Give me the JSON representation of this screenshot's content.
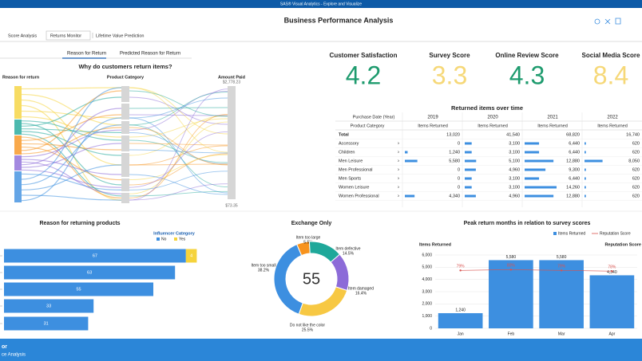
{
  "app_title": "SAS® Visual Analytics - Explore and Visualize",
  "report_title": "Business Performance Analysis",
  "tabs": [
    "Score Analysis",
    "Returns Monitor",
    "Lifetime Value Prediction"
  ],
  "subtabs": [
    "Reason for Return",
    "Predicted Reason for Return"
  ],
  "sankey": {
    "title": "Why do customers return items?",
    "axes": [
      "Reason for return",
      "Product Category",
      "Amount Paid"
    ],
    "max_label": "$2,778.23",
    "min_label": "$73.35"
  },
  "kpis": [
    {
      "label": "Customer Satisfaction",
      "value": 4.2,
      "color": "#1e9b6e"
    },
    {
      "label": "Survey Score",
      "value": 3.3,
      "color": "#f6d878"
    },
    {
      "label": "Online Review Score",
      "value": 4.3,
      "color": "#1e9b6e"
    },
    {
      "label": "Social Media Score",
      "value": 8.4,
      "color": "#f6d878"
    }
  ],
  "table": {
    "title": "Returned items over time",
    "column_dim": "Purchase Date (Year)",
    "row_dim": "Product Category",
    "years": [
      "2019",
      "2020",
      "2021",
      "2022"
    ],
    "measure": "Items Returned",
    "bar_color": "#3d8fe0",
    "rows": [
      {
        "label": "Total",
        "values": [
          13020,
          41540,
          68820,
          16740
        ],
        "value_labels": [
          "13,020",
          "41,540",
          "68,820",
          "16,740"
        ]
      },
      {
        "label": "Accessory",
        "values": [
          0,
          3100,
          6440,
          620
        ],
        "value_labels": [
          "0",
          "3,100",
          "6,440",
          "620"
        ]
      },
      {
        "label": "Children",
        "values": [
          1240,
          3100,
          6440,
          620
        ],
        "value_labels": [
          "1,240",
          "3,100",
          "6,440",
          "620"
        ]
      },
      {
        "label": "Men Leisure",
        "values": [
          5580,
          5100,
          12880,
          8050
        ],
        "value_labels": [
          "5,580",
          "5,100",
          "12,880",
          "8,050"
        ]
      },
      {
        "label": "Men Professional",
        "values": [
          0,
          4960,
          9300,
          620
        ],
        "value_labels": [
          "0",
          "4,960",
          "9,300",
          "620"
        ]
      },
      {
        "label": "Men Sports",
        "values": [
          0,
          3100,
          6440,
          620
        ],
        "value_labels": [
          "0",
          "3,100",
          "6,440",
          "620"
        ]
      },
      {
        "label": "Women Leisure",
        "values": [
          0,
          3100,
          14260,
          620
        ],
        "value_labels": [
          "0",
          "3,100",
          "14,260",
          "620"
        ]
      },
      {
        "label": "Women Professional",
        "values": [
          4340,
          4960,
          12880,
          620
        ],
        "value_labels": [
          "4,340",
          "4,960",
          "12,880",
          "620"
        ]
      }
    ]
  },
  "bar_chart": {
    "type": "hbar",
    "title": "Reason for returning products",
    "legend_title": "Influencer Category",
    "series": [
      {
        "name": "No",
        "color": "#3d8fe0",
        "values": [
          67,
          63,
          55,
          33,
          31
        ]
      },
      {
        "name": "Yes",
        "color": "#f5d33c",
        "values": [
          4,
          null,
          null,
          null,
          null
        ]
      }
    ]
  },
  "donut": {
    "type": "donut",
    "title": "Exchange Only",
    "center_label": "55",
    "categories": [
      "Item too large",
      "Item defective",
      "Item damaged",
      "Do not like the color",
      "Item too small"
    ],
    "values": [
      5.5,
      14.5,
      16.4,
      25.5,
      38.2
    ],
    "value_labels": [
      "5.5%",
      "14.5%",
      "16.4%",
      "25.5%",
      "38.2%"
    ],
    "colors": [
      "#f7931e",
      "#1fa89a",
      "#8c6bd8",
      "#f7c843",
      "#3d8fe0"
    ]
  },
  "combo": {
    "type": "bar_line",
    "title": "Peak return months in relation to survey scores",
    "y_label": "Items Returned",
    "y2_label": "Reputation Score",
    "categories": [
      "Jan",
      "Feb",
      "Mar",
      "Apr"
    ],
    "ylim": [
      0,
      6000
    ],
    "yticks": [
      0,
      {
        "value": 1000,
        "label": "1,000"
      },
      {
        "value": 2000,
        "label": "2,000"
      },
      {
        "value": 3000,
        "label": "3,000"
      },
      {
        "value": 4000,
        "label": "4,000"
      },
      {
        "value": 5000,
        "label": "5,000"
      },
      {
        "value": 6000,
        "label": "6,000"
      }
    ],
    "y2lim": [
      0,
      100
    ],
    "series": [
      {
        "name": "Items Returned",
        "color": "#3d8fe0",
        "values": [
          1240,
          5580,
          5580,
          4340
        ],
        "value_labels": [
          "1,240",
          "5,580",
          "5,580",
          "4,340"
        ]
      },
      {
        "name": "Reputation Score",
        "color": "#d9534f",
        "axis": "y2",
        "values": [
          79,
          80,
          79,
          78
        ],
        "value_labels": [
          "79%",
          "80%",
          "79%",
          "78%"
        ]
      }
    ]
  },
  "footer": [
    "or",
    "ce Analysis"
  ]
}
